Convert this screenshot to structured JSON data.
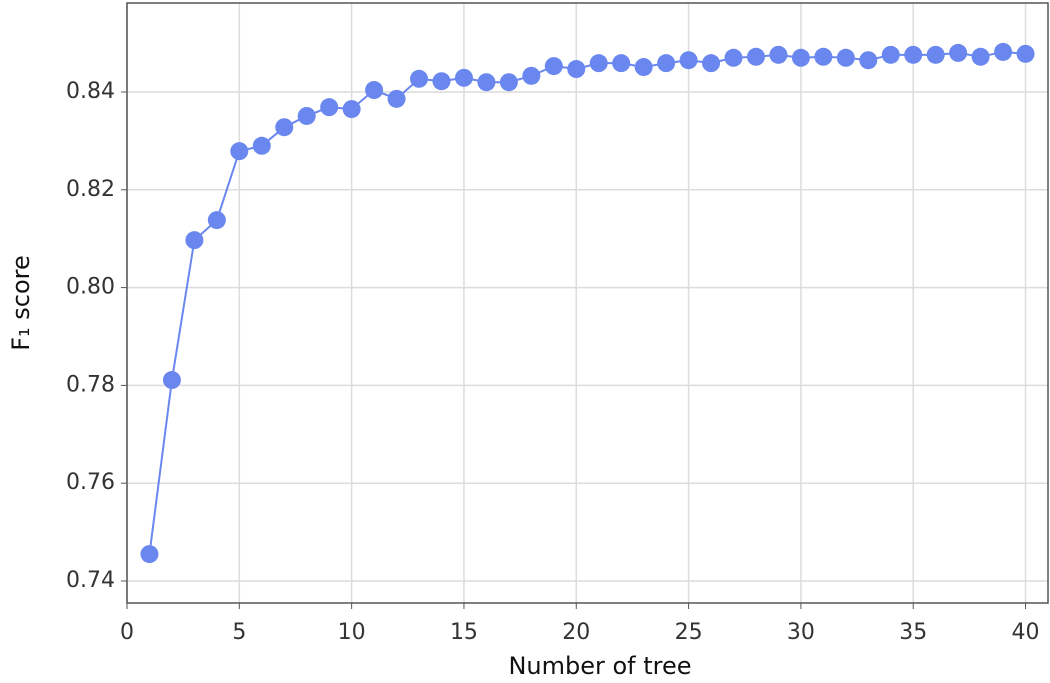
{
  "chart_data": {
    "type": "line",
    "x_label": "Number of tree",
    "y_label": "F₁ score",
    "x": [
      1,
      2,
      3,
      4,
      5,
      6,
      7,
      8,
      9,
      10,
      11,
      12,
      13,
      14,
      15,
      16,
      17,
      18,
      19,
      20,
      21,
      22,
      23,
      24,
      25,
      26,
      27,
      28,
      29,
      30,
      31,
      32,
      33,
      34,
      35,
      36,
      37,
      38,
      39,
      40
    ],
    "series": [
      {
        "color": "#6a87ef",
        "values": [
          0.7455,
          0.7811,
          0.8097,
          0.8138,
          0.8279,
          0.829,
          0.8328,
          0.8351,
          0.8369,
          0.8365,
          0.8404,
          0.8386,
          0.8427,
          0.8422,
          0.8429,
          0.842,
          0.842,
          0.8433,
          0.8453,
          0.8447,
          0.8459,
          0.8459,
          0.8451,
          0.8459,
          0.8465,
          0.8459,
          0.847,
          0.8472,
          0.8476,
          0.847,
          0.8472,
          0.847,
          0.8465,
          0.8476,
          0.8476,
          0.8476,
          0.848,
          0.8472,
          0.8482,
          0.8478
        ]
      }
    ],
    "xlim": [
      0,
      41
    ],
    "ylim": [
      0.7355,
      0.8582
    ],
    "xticks": [
      0,
      5,
      10,
      15,
      20,
      25,
      30,
      35,
      40
    ],
    "yticks": [
      0.74,
      0.76,
      0.78,
      {
        "value": 0.8,
        "label": "0.80"
      },
      0.82,
      0.84
    ],
    "grid": true
  }
}
